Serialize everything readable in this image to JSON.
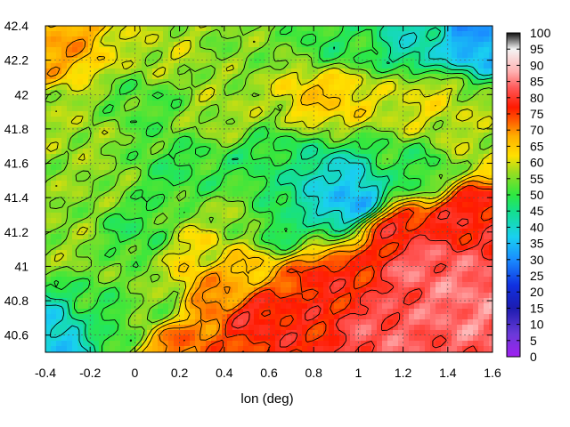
{
  "chart_data": {
    "type": "heatmap",
    "title": "",
    "xlabel": "lon (deg)",
    "ylabel": "",
    "xlim": [
      -0.4,
      1.6
    ],
    "ylim": [
      40.5,
      42.4
    ],
    "x_ticks": [
      -0.4,
      -0.2,
      0,
      0.2,
      0.4,
      0.6,
      0.8,
      1,
      1.2,
      1.4,
      1.6
    ],
    "x_tick_labels": [
      "-0.4",
      "-0.2",
      "0",
      "0.2",
      "0.4",
      "0.6",
      "0.8",
      "1",
      "1.2",
      "1.4",
      "1.6"
    ],
    "y_ticks": [
      40.6,
      40.8,
      41,
      41.2,
      41.4,
      41.6,
      41.8,
      42,
      42.2,
      42.4
    ],
    "y_tick_labels": [
      "40.6",
      "40.8",
      "41",
      "41.2",
      "41.4",
      "41.6",
      "41.8",
      "42",
      "42.2",
      "42.4"
    ],
    "colorbar": {
      "range": [
        0,
        100
      ],
      "ticks": [
        0,
        5,
        10,
        15,
        20,
        25,
        30,
        35,
        40,
        45,
        50,
        55,
        60,
        65,
        70,
        75,
        80,
        85,
        90,
        95,
        100
      ],
      "tick_labels": [
        "0",
        "5",
        "10",
        "15",
        "20",
        "25",
        "30",
        "35",
        "40",
        "45",
        "50",
        "55",
        "60",
        "65",
        "70",
        "75",
        "80",
        "85",
        "90",
        "95",
        "100"
      ],
      "colors": [
        "#a020f0",
        "#6a3ad8",
        "#1c1cb0",
        "#1030e0",
        "#1a8cff",
        "#19d0f0",
        "#14e08c",
        "#2ee840",
        "#9bdc20",
        "#ffe000",
        "#ffb000",
        "#ff5a00",
        "#ff1a00",
        "#ff5858",
        "#ffb0b0",
        "#f4f4f4",
        "#111111"
      ],
      "color_stops": [
        0,
        7,
        15,
        22,
        30,
        37,
        45,
        50,
        57,
        62,
        68,
        73,
        77,
        83,
        88,
        95,
        100
      ]
    },
    "grid": true,
    "contours": true,
    "field_anchors": [
      {
        "lon": -0.35,
        "lat": 42.3,
        "value": 68
      },
      {
        "lon": 0.1,
        "lat": 42.25,
        "value": 58
      },
      {
        "lon": 0.5,
        "lat": 42.3,
        "value": 55
      },
      {
        "lon": 0.9,
        "lat": 42.3,
        "value": 50
      },
      {
        "lon": 1.3,
        "lat": 42.32,
        "value": 42
      },
      {
        "lon": 1.5,
        "lat": 42.35,
        "value": 32
      },
      {
        "lon": 0.05,
        "lat": 41.95,
        "value": 52
      },
      {
        "lon": -0.3,
        "lat": 41.8,
        "value": 57
      },
      {
        "lon": 0.4,
        "lat": 41.9,
        "value": 57
      },
      {
        "lon": 0.85,
        "lat": 42.0,
        "value": 64
      },
      {
        "lon": 1.3,
        "lat": 41.95,
        "value": 60
      },
      {
        "lon": 1.55,
        "lat": 41.75,
        "value": 58
      },
      {
        "lon": -0.2,
        "lat": 41.5,
        "value": 56
      },
      {
        "lon": 0.2,
        "lat": 41.55,
        "value": 50
      },
      {
        "lon": 0.6,
        "lat": 41.6,
        "value": 49
      },
      {
        "lon": 0.95,
        "lat": 41.4,
        "value": 34
      },
      {
        "lon": 0.85,
        "lat": 41.45,
        "value": 40
      },
      {
        "lon": 1.25,
        "lat": 41.55,
        "value": 50
      },
      {
        "lon": -0.3,
        "lat": 41.15,
        "value": 56
      },
      {
        "lon": 0.0,
        "lat": 41.2,
        "value": 50
      },
      {
        "lon": 0.3,
        "lat": 41.1,
        "value": 61
      },
      {
        "lon": 0.45,
        "lat": 41.25,
        "value": 56
      },
      {
        "lon": 0.65,
        "lat": 41.25,
        "value": 48
      },
      {
        "lon": -0.35,
        "lat": 40.6,
        "value": 37
      },
      {
        "lon": -0.15,
        "lat": 40.7,
        "value": 50
      },
      {
        "lon": 0.1,
        "lat": 40.8,
        "value": 55
      },
      {
        "lon": 0.35,
        "lat": 40.85,
        "value": 70
      },
      {
        "lon": 0.45,
        "lat": 40.95,
        "value": 66
      },
      {
        "lon": 0.55,
        "lat": 40.7,
        "value": 78
      },
      {
        "lon": 0.75,
        "lat": 40.62,
        "value": 77
      },
      {
        "lon": 0.85,
        "lat": 40.9,
        "value": 77
      },
      {
        "lon": 1.2,
        "lat": 41.2,
        "value": 78
      },
      {
        "lon": 1.5,
        "lat": 41.3,
        "value": 78
      },
      {
        "lon": 1.1,
        "lat": 40.6,
        "value": 83
      },
      {
        "lon": 1.5,
        "lat": 40.8,
        "value": 85
      },
      {
        "lon": 1.3,
        "lat": 41.0,
        "value": 84
      },
      {
        "lon": 0.25,
        "lat": 40.55,
        "value": 72
      }
    ]
  }
}
